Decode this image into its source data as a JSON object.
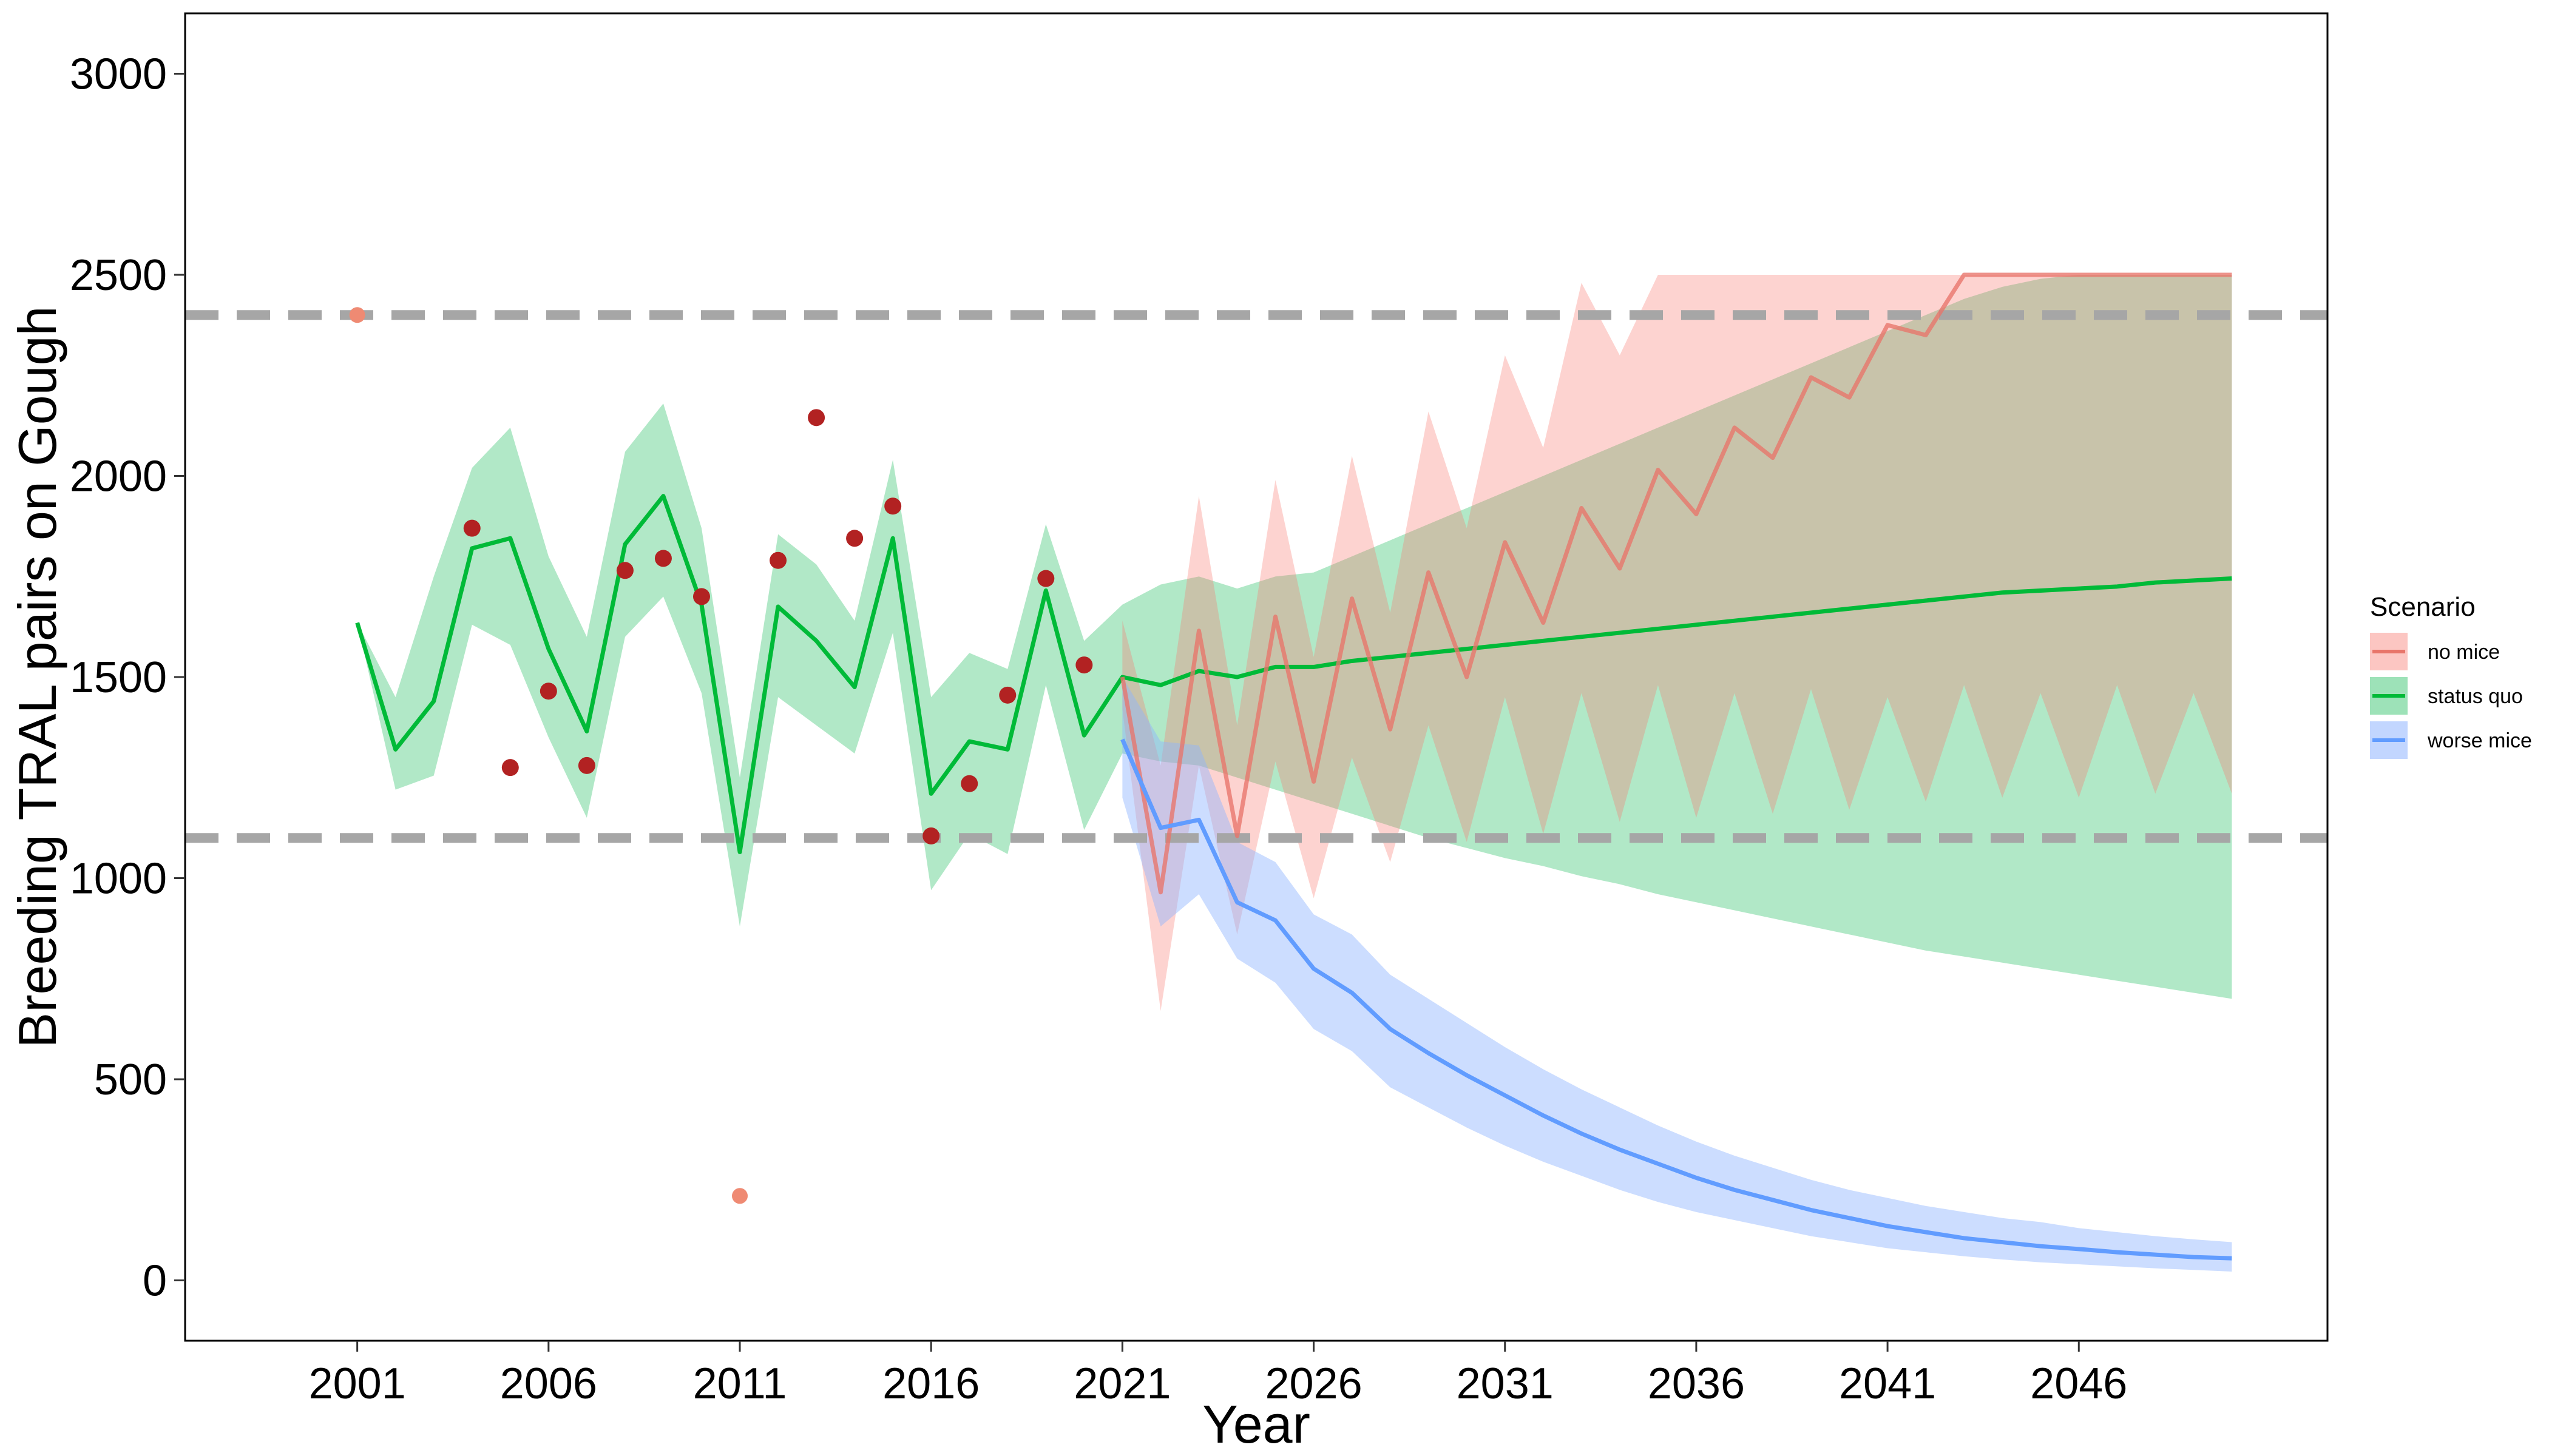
{
  "chart_data": {
    "type": "line",
    "title": "",
    "xlabel": "Year",
    "ylabel": "Breeding TRAL pairs on Gough",
    "xlim": [
      1996.5,
      2052.5
    ],
    "ylim": [
      -150,
      3150
    ],
    "x_ticks": [
      2001,
      2006,
      2011,
      2016,
      2021,
      2026,
      2031,
      2036,
      2041,
      2046
    ],
    "y_ticks": [
      0,
      500,
      1000,
      1500,
      2000,
      2500,
      3000
    ],
    "grid": false,
    "legend": {
      "title": "Scenario",
      "position": "right",
      "entries": [
        "no mice",
        "status quo",
        "worse mice"
      ]
    },
    "colors": {
      "no_mice_line": "#e8756a",
      "no_mice_band": "#f8766d",
      "status_quo_line": "#00ba38",
      "status_quo_band": "#33c36b",
      "worse_mice_line": "#619cff",
      "worse_mice_band": "#8fb4ff",
      "observed_counts": "#b22222",
      "excluded_counts": "#ef8a73",
      "threshold_lines": "#a6a6a6"
    },
    "reference_lines": [
      2400,
      1100
    ],
    "series": [
      {
        "name": "status quo",
        "x": [
          2001,
          2002,
          2003,
          2004,
          2005,
          2006,
          2007,
          2008,
          2009,
          2010,
          2011,
          2012,
          2013,
          2014,
          2015,
          2016,
          2017,
          2018,
          2019,
          2020,
          2021,
          2022,
          2023,
          2024,
          2025,
          2026,
          2027,
          2028,
          2029,
          2030,
          2031,
          2032,
          2033,
          2034,
          2035,
          2036,
          2037,
          2038,
          2039,
          2040,
          2041,
          2042,
          2043,
          2044,
          2045,
          2046,
          2047,
          2048,
          2049,
          2050
        ],
        "values": [
          1635,
          1320,
          1440,
          1820,
          1845,
          1570,
          1365,
          1830,
          1950,
          1680,
          1065,
          1675,
          1590,
          1475,
          1845,
          1210,
          1340,
          1320,
          1715,
          1355,
          1500,
          1480,
          1515,
          1500,
          1525,
          1525,
          1540,
          1550,
          1560,
          1570,
          1580,
          1590,
          1600,
          1610,
          1620,
          1630,
          1640,
          1650,
          1660,
          1670,
          1680,
          1690,
          1700,
          1710,
          1715,
          1720,
          1725,
          1735,
          1740,
          1745
        ],
        "lower": [
          1635,
          1220,
          1255,
          1630,
          1580,
          1350,
          1150,
          1600,
          1700,
          1460,
          880,
          1450,
          1380,
          1310,
          1610,
          970,
          1110,
          1060,
          1480,
          1120,
          1310,
          1290,
          1280,
          1250,
          1220,
          1190,
          1160,
          1130,
          1100,
          1075,
          1050,
          1030,
          1005,
          985,
          960,
          940,
          920,
          900,
          880,
          860,
          840,
          820,
          805,
          790,
          775,
          760,
          745,
          730,
          715,
          700
        ],
        "upper": [
          1635,
          1450,
          1750,
          2020,
          2120,
          1800,
          1600,
          2060,
          2180,
          1870,
          1250,
          1855,
          1780,
          1640,
          2040,
          1450,
          1560,
          1520,
          1880,
          1590,
          1680,
          1730,
          1750,
          1720,
          1750,
          1760,
          1800,
          1840,
          1880,
          1920,
          1960,
          2000,
          2040,
          2080,
          2120,
          2160,
          2200,
          2240,
          2280,
          2320,
          2360,
          2400,
          2440,
          2470,
          2490,
          2500,
          2500,
          2500,
          2500,
          2500
        ]
      },
      {
        "name": "no mice",
        "x": [
          2021,
          2022,
          2023,
          2024,
          2025,
          2026,
          2027,
          2028,
          2029,
          2030,
          2031,
          2032,
          2033,
          2034,
          2035,
          2036,
          2037,
          2038,
          2039,
          2040,
          2041,
          2042,
          2043,
          2044,
          2045,
          2046,
          2047,
          2048,
          2049,
          2050
        ],
        "values": [
          1500,
          965,
          1615,
          1105,
          1650,
          1240,
          1695,
          1370,
          1760,
          1500,
          1835,
          1635,
          1920,
          1770,
          2015,
          1905,
          2120,
          2045,
          2245,
          2195,
          2375,
          2350,
          2500,
          2500,
          2500,
          2500,
          2500,
          2500,
          2500,
          2500
        ],
        "lower": [
          1420,
          670,
          1280,
          860,
          1290,
          950,
          1300,
          1040,
          1380,
          1090,
          1450,
          1110,
          1460,
          1140,
          1480,
          1150,
          1460,
          1160,
          1470,
          1170,
          1450,
          1190,
          1480,
          1200,
          1460,
          1200,
          1480,
          1210,
          1460,
          1210
        ],
        "upper": [
          1640,
          1280,
          1950,
          1380,
          1990,
          1550,
          2050,
          1660,
          2160,
          1870,
          2300,
          2070,
          2480,
          2300,
          2500,
          2500,
          2500,
          2500,
          2500,
          2500,
          2500,
          2500,
          2500,
          2500,
          2500,
          2500,
          2500,
          2500,
          2500,
          2500
        ]
      },
      {
        "name": "worse mice",
        "x": [
          2021,
          2022,
          2023,
          2024,
          2025,
          2026,
          2027,
          2028,
          2029,
          2030,
          2031,
          2032,
          2033,
          2034,
          2035,
          2036,
          2037,
          2038,
          2039,
          2040,
          2041,
          2042,
          2043,
          2044,
          2045,
          2046,
          2047,
          2048,
          2049,
          2050
        ],
        "values": [
          1345,
          1125,
          1145,
          940,
          895,
          775,
          715,
          625,
          565,
          510,
          460,
          410,
          365,
          325,
          290,
          255,
          225,
          200,
          175,
          155,
          135,
          120,
          105,
          95,
          85,
          78,
          70,
          64,
          58,
          55
        ],
        "lower": [
          1200,
          880,
          960,
          800,
          740,
          625,
          570,
          480,
          430,
          380,
          335,
          295,
          260,
          225,
          195,
          170,
          150,
          130,
          110,
          95,
          80,
          70,
          60,
          52,
          45,
          40,
          35,
          30,
          26,
          22
        ],
        "upper": [
          1500,
          1340,
          1330,
          1090,
          1040,
          910,
          860,
          760,
          700,
          640,
          580,
          525,
          475,
          430,
          385,
          345,
          310,
          280,
          250,
          225,
          205,
          185,
          170,
          155,
          145,
          130,
          120,
          110,
          102,
          95
        ]
      }
    ],
    "observed_counts": {
      "x": [
        2004,
        2005,
        2006,
        2007,
        2008,
        2009,
        2010,
        2012,
        2013,
        2014,
        2015,
        2016,
        2017,
        2018,
        2019,
        2020
      ],
      "values": [
        1870,
        1275,
        1465,
        1280,
        1765,
        1795,
        1700,
        1790,
        2145,
        1845,
        1925,
        1105,
        1235,
        1455,
        1745,
        1530
      ]
    },
    "excluded_counts": {
      "x": [
        2001,
        2011
      ],
      "values": [
        2400,
        210
      ]
    }
  }
}
